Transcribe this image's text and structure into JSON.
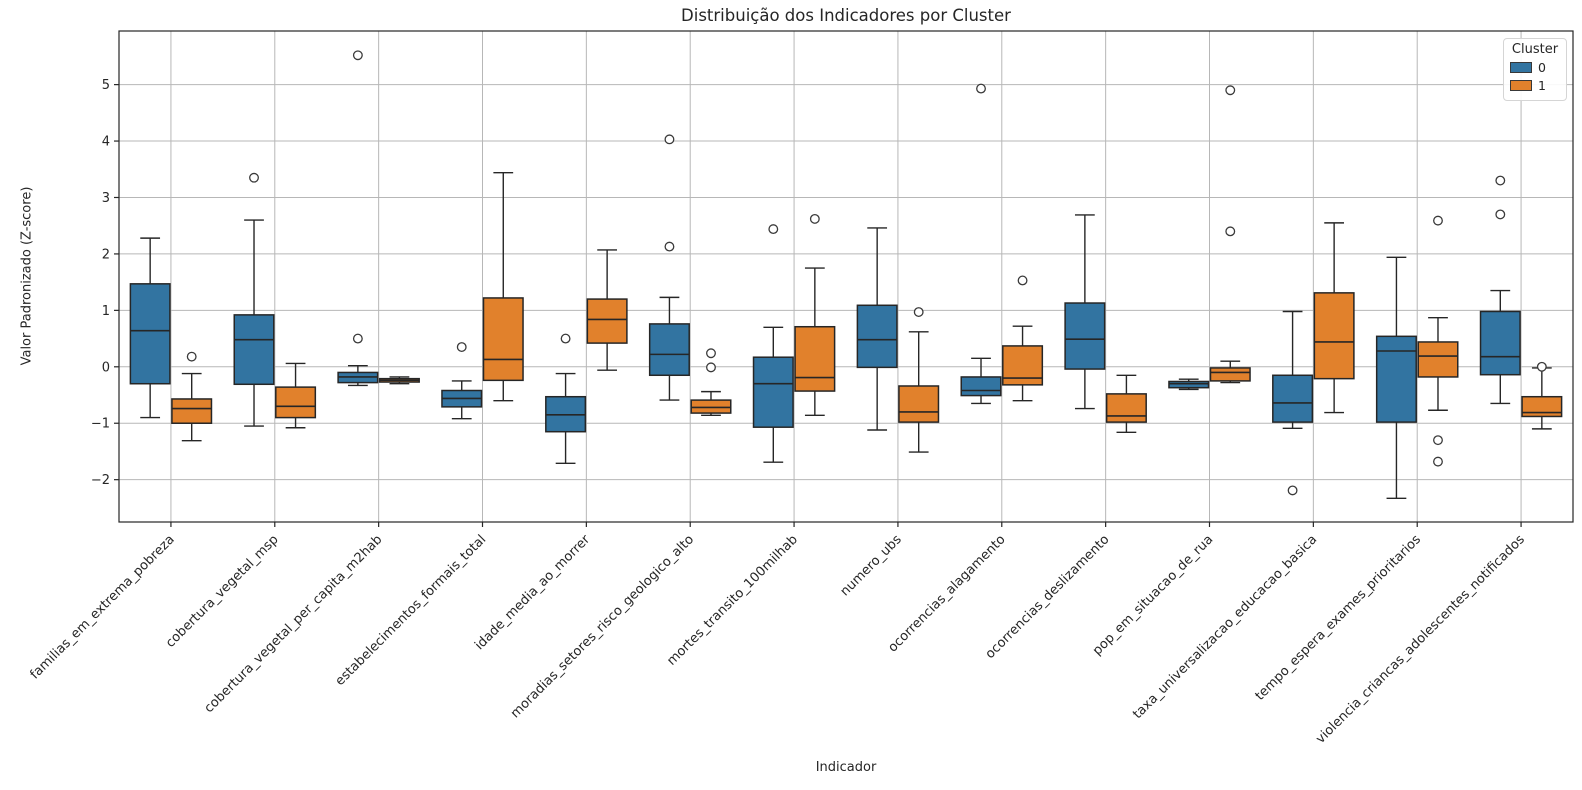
{
  "chart_data": {
    "type": "boxplot",
    "title": "Distribuição dos Indicadores por Cluster",
    "xlabel": "Indicador",
    "ylabel": "Valor Padronizado (Z-score)",
    "grid": true,
    "ylim": [
      -2.75,
      5.95
    ],
    "yticks": [
      -2,
      -1,
      0,
      1,
      2,
      3,
      4,
      5
    ],
    "x_tick_rotation_deg": 45,
    "legend": {
      "title": "Cluster",
      "position": "upper right",
      "entries": [
        {
          "label": "0",
          "color": "#3274a1"
        },
        {
          "label": "1",
          "color": "#e1812c"
        }
      ]
    },
    "style": {
      "box_edge": "#262626",
      "whisker_color": "#262626",
      "median_color": "#262626",
      "grid_color": "#b7b7b7",
      "spine_color": "#262626",
      "outlier_stroke": "#3a3a3a",
      "outlier_fill": "#ffffff"
    },
    "categories": [
      "familias_em_extrema_pobreza",
      "cobertura_vegetal_msp",
      "cobertura_vegetal_per_capita_m2hab",
      "estabelecimentos_formais_total",
      "idade_media_ao_morrer",
      "moradias_setores_risco_geologico_alto",
      "mortes_transito_100milhab",
      "numero_ubs",
      "ocorrencias_alagamento",
      "ocorrencias_deslizamento",
      "pop_em_situacao_de_rua",
      "taxa_universalizacao_educacao_basica",
      "tempo_espera_exames_prioritarios",
      "violencia_criancas_adolescentes_notificados"
    ],
    "series": [
      {
        "name": "0",
        "color": "#3274a1",
        "boxes": [
          {
            "whislo": -0.9,
            "q1": -0.3,
            "med": 0.64,
            "q3": 1.47,
            "whishi": 2.28,
            "outliers": []
          },
          {
            "whislo": -1.05,
            "q1": -0.31,
            "med": 0.48,
            "q3": 0.92,
            "whishi": 2.6,
            "outliers": [
              3.35
            ]
          },
          {
            "whislo": -0.33,
            "q1": -0.28,
            "med": -0.18,
            "q3": -0.1,
            "whishi": 0.02,
            "outliers": [
              0.5,
              5.52
            ]
          },
          {
            "whislo": -0.92,
            "q1": -0.71,
            "med": -0.56,
            "q3": -0.42,
            "whishi": -0.25,
            "outliers": [
              0.35
            ]
          },
          {
            "whislo": -1.71,
            "q1": -1.15,
            "med": -0.85,
            "q3": -0.53,
            "whishi": -0.12,
            "outliers": [
              0.5
            ]
          },
          {
            "whislo": -0.59,
            "q1": -0.15,
            "med": 0.22,
            "q3": 0.76,
            "whishi": 1.23,
            "outliers": [
              2.13,
              4.03
            ]
          },
          {
            "whislo": -1.69,
            "q1": -1.07,
            "med": -0.3,
            "q3": 0.17,
            "whishi": 0.7,
            "outliers": [
              2.44
            ]
          },
          {
            "whislo": -1.12,
            "q1": -0.01,
            "med": 0.48,
            "q3": 1.09,
            "whishi": 2.46,
            "outliers": []
          },
          {
            "whislo": -0.65,
            "q1": -0.51,
            "med": -0.42,
            "q3": -0.18,
            "whishi": 0.15,
            "outliers": [
              4.93
            ]
          },
          {
            "whislo": -0.74,
            "q1": -0.04,
            "med": 0.49,
            "q3": 1.13,
            "whishi": 2.69,
            "outliers": []
          },
          {
            "whislo": -0.4,
            "q1": -0.37,
            "med": -0.3,
            "q3": -0.26,
            "whishi": -0.22,
            "outliers": []
          },
          {
            "whislo": -1.09,
            "q1": -0.98,
            "med": -0.64,
            "q3": -0.15,
            "whishi": 0.98,
            "outliers": [
              -2.19
            ]
          },
          {
            "whislo": -2.33,
            "q1": -0.98,
            "med": 0.28,
            "q3": 0.54,
            "whishi": 1.94,
            "outliers": []
          },
          {
            "whislo": -0.65,
            "q1": -0.14,
            "med": 0.18,
            "q3": 0.98,
            "whishi": 1.35,
            "outliers": [
              2.7,
              3.3
            ]
          }
        ]
      },
      {
        "name": "1",
        "color": "#e1812c",
        "boxes": [
          {
            "whislo": -1.31,
            "q1": -1.0,
            "med": -0.74,
            "q3": -0.57,
            "whishi": -0.12,
            "outliers": [
              0.18
            ]
          },
          {
            "whislo": -1.08,
            "q1": -0.9,
            "med": -0.7,
            "q3": -0.36,
            "whishi": 0.06,
            "outliers": []
          },
          {
            "whislo": -0.3,
            "q1": -0.27,
            "med": -0.24,
            "q3": -0.21,
            "whishi": -0.18,
            "outliers": []
          },
          {
            "whislo": -0.6,
            "q1": -0.24,
            "med": 0.13,
            "q3": 1.22,
            "whishi": 3.44,
            "outliers": []
          },
          {
            "whislo": -0.06,
            "q1": 0.42,
            "med": 0.84,
            "q3": 1.2,
            "whishi": 2.07,
            "outliers": []
          },
          {
            "whislo": -0.86,
            "q1": -0.82,
            "med": -0.72,
            "q3": -0.59,
            "whishi": -0.44,
            "outliers": [
              0.24,
              -0.01
            ]
          },
          {
            "whislo": -0.86,
            "q1": -0.43,
            "med": -0.19,
            "q3": 0.71,
            "whishi": 1.75,
            "outliers": [
              2.62
            ]
          },
          {
            "whislo": -1.51,
            "q1": -0.98,
            "med": -0.8,
            "q3": -0.34,
            "whishi": 0.62,
            "outliers": [
              0.97
            ]
          },
          {
            "whislo": -0.6,
            "q1": -0.32,
            "med": -0.2,
            "q3": 0.37,
            "whishi": 0.72,
            "outliers": [
              1.53
            ]
          },
          {
            "whislo": -1.16,
            "q1": -0.98,
            "med": -0.87,
            "q3": -0.48,
            "whishi": -0.15,
            "outliers": []
          },
          {
            "whislo": -0.28,
            "q1": -0.25,
            "med": -0.1,
            "q3": -0.02,
            "whishi": 0.1,
            "outliers": [
              2.4,
              4.9
            ]
          },
          {
            "whislo": -0.81,
            "q1": -0.21,
            "med": 0.44,
            "q3": 1.31,
            "whishi": 2.55,
            "outliers": []
          },
          {
            "whislo": -0.77,
            "q1": -0.18,
            "med": 0.19,
            "q3": 0.44,
            "whishi": 0.87,
            "outliers": [
              2.59,
              -1.3,
              -1.68
            ]
          },
          {
            "whislo": -1.1,
            "q1": -0.88,
            "med": -0.81,
            "q3": -0.53,
            "whishi": -0.02,
            "outliers": [
              0.0
            ]
          }
        ]
      }
    ]
  }
}
